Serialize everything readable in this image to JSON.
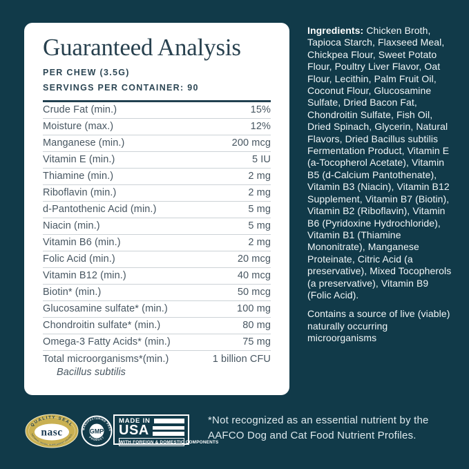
{
  "colors": {
    "background": "#113a49",
    "card": "#ffffff",
    "heading": "#28414f",
    "table_text": "#475661",
    "rule_thick": "#21404f",
    "rule_thin": "#ccd2d6",
    "light_text": "#f2f7f8",
    "seal_gold": "#c9b052"
  },
  "card": {
    "title": "Guaranteed Analysis",
    "per_chew": "PER CHEW (3.5G)",
    "servings": "SERVINGS PER CONTAINER: 90",
    "table": {
      "rows": [
        {
          "label": "Crude Fat (min.)",
          "value": "15%"
        },
        {
          "label": "Moisture (max.)",
          "value": "12%"
        },
        {
          "label": "Manganese (min.)",
          "value": "200 mcg"
        },
        {
          "label": "Vitamin E (min.)",
          "value": "5 IU"
        },
        {
          "label": "Thiamine (min.)",
          "value": "2 mg"
        },
        {
          "label": "Riboflavin (min.)",
          "value": "2 mg"
        },
        {
          "label": "d-Pantothenic Acid (min.)",
          "value": "5 mg"
        },
        {
          "label": "Niacin (min.)",
          "value": "5 mg"
        },
        {
          "label": "Vitamin B6 (min.)",
          "value": "2 mg"
        },
        {
          "label": "Folic Acid (min.)",
          "value": "20 mcg"
        },
        {
          "label": "Vitamin B12 (min.)",
          "value": "40 mcg"
        },
        {
          "label": "Biotin* (min.)",
          "value": "50 mcg"
        },
        {
          "label": "Glucosamine sulfate* (min.)",
          "value": "100 mg"
        },
        {
          "label": "Chondroitin sulfate* (min.)",
          "value": "80 mg"
        },
        {
          "label": "Omega-3 Fatty Acids* (min.)",
          "value": "75 mg"
        },
        {
          "label": "Total microorganisms*(min.)",
          "value": "1 billion CFU",
          "sub": "Bacillus subtilis"
        }
      ]
    }
  },
  "ingredients": {
    "label": "Ingredients:",
    "text": " Chicken Broth, Tapioca Starch, Flaxseed Meal, Chickpea Flour, Sweet Potato Flour, Poultry Liver Flavor, Oat Flour, Lecithin, Palm Fruit Oil, Coconut Flour, Glucosamine Sulfate, Dried Bacon Fat, Chondroitin Sulfate, Fish Oil, Dried Spinach, Glycerin, Natural Flavors, Dried Bacillus subtilis Fermentation Product, Vitamin E (a-Tocopherol Acetate), Vitamin B5 (d-Calcium Pantothenate), Vitamin B3 (Niacin), Vitamin B12 Supplement, Vitamin B7 (Biotin), Vitamin B2 (Riboflavin), Vitamin B6 (Pyridoxine Hydrochloride), Vitamin B1 (Thiamine Mononitrate), Manganese Proteinate, Citric Acid (a preservative), Mixed Tocopherols (a preservative), Vitamin B9 (Folic Acid).",
    "note": "Contains a source of live (viable) naturally occurring microorganisms"
  },
  "footer": {
    "footnote": "*Not recognized as an essential nutrient by the AAFCO Dog and Cat Food Nutrient Profiles."
  },
  "seals": {
    "nasc": {
      "arc_top": "QUALITY SEAL",
      "center": "nasc",
      "arc_bottom": "NATIONAL ANIMAL SUPPLEMENT COUNCIL"
    },
    "gmp": {
      "arc_top": "GOOD MANUFACTURING PRACTICES",
      "center": "GMP",
      "arc_bottom": "PRODUCT"
    },
    "made_in_usa": {
      "line1": "MADE IN",
      "line2": "USA",
      "line3": "WITH FOREIGN & DOMESTIC COMPONENTS"
    }
  }
}
